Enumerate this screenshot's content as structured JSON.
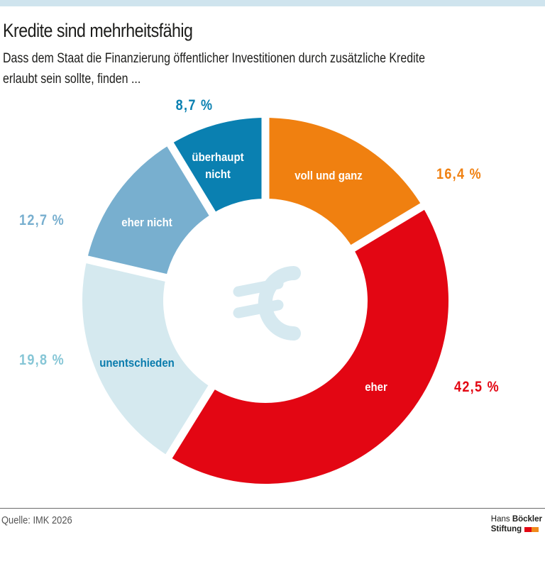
{
  "header": {
    "title": "Kredite sind mehrheitsfähig",
    "subtitle_lines": [
      "Dass dem Staat die Finanzierung öffentlicher Investitionen durch zusätzliche Kredite",
      "erlaubt sein sollte, finden ..."
    ]
  },
  "footer": {
    "source": "Quelle: IMK 2026",
    "logo_line1_regular": "Hans ",
    "logo_line1_bold": "Böckler",
    "logo_line2": "Stiftung",
    "logo_colors": [
      "#e30613",
      "#f08a1c"
    ]
  },
  "colors": {
    "top_band": "#cfe4ee",
    "euro_symbol": "#d6e9f0"
  },
  "chart_data": {
    "type": "pie",
    "variant": "donut",
    "title": "Kredite sind mehrheitsfähig",
    "subtitle": "Dass dem Staat die Finanzierung öffentlicher Investitionen durch zusätzliche Kredite erlaubt sein sollte, finden ...",
    "start_angle_deg": 0,
    "direction": "clockwise",
    "center_icon": "euro-icon",
    "categories": [
      "voll und ganz",
      "eher",
      "unentschieden",
      "eher nicht",
      "überhaupt nicht"
    ],
    "values": [
      16.4,
      42.5,
      19.8,
      12.7,
      8.7
    ],
    "value_labels": [
      "16,4 %",
      "42,5 %",
      "19,8 %",
      "12,7 %",
      "8,7 %"
    ],
    "unit": "%",
    "segments": [
      {
        "label": "voll und ganz",
        "label_lines": [
          "voll und ganz"
        ],
        "value": 16.4,
        "value_label": "16,4 %",
        "color": "#f08010",
        "label_color": "#ffffff",
        "value_color": "#f08010"
      },
      {
        "label": "eher",
        "label_lines": [
          "eher"
        ],
        "value": 42.5,
        "value_label": "42,5 %",
        "color": "#e30613",
        "label_color": "#ffffff",
        "value_color": "#e30613"
      },
      {
        "label": "unentschieden",
        "label_lines": [
          "unentschieden"
        ],
        "value": 19.8,
        "value_label": "19,8 %",
        "color": "#d5e9ef",
        "label_color": "#0a7cad",
        "value_color": "#86c6d6"
      },
      {
        "label": "eher nicht",
        "label_lines": [
          "eher nicht"
        ],
        "value": 12.7,
        "value_label": "12,7 %",
        "color": "#78afcf",
        "label_color": "#ffffff",
        "value_color": "#78afcf"
      },
      {
        "label": "überhaupt nicht",
        "label_lines": [
          "überhaupt",
          "nicht"
        ],
        "value": 8.7,
        "value_label": "8,7 %",
        "color": "#0a80b1",
        "label_color": "#ffffff",
        "value_color": "#0a80b1"
      }
    ],
    "source": "Quelle: IMK 2026"
  }
}
